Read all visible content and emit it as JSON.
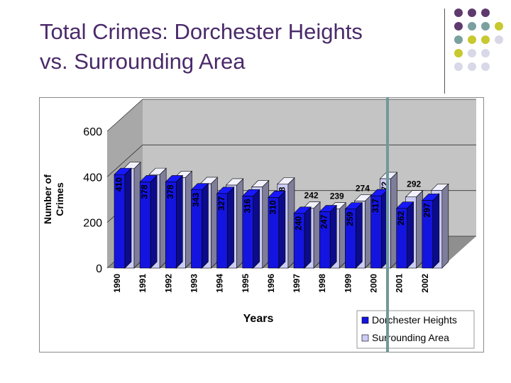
{
  "slide": {
    "title_line1": "Total Crimes: Dorchester Heights",
    "title_line2": "vs. Surrounding Area"
  },
  "theme": {
    "title_color": "#4a2a6a",
    "dot_colors": [
      "#5e3a6e",
      "#7aa0a0",
      "#c8c830",
      "#d8d8e8"
    ]
  },
  "chart_data": {
    "type": "bar",
    "style": "3d-clustered",
    "categories": [
      "1990",
      "1991",
      "1992",
      "1993",
      "1994",
      "1995",
      "1996",
      "1997",
      "1998",
      "1999",
      "2000",
      "2001",
      "2002"
    ],
    "series": [
      {
        "name": "Dorchester Heights",
        "color": "#1414e0",
        "values": [
          410,
          378,
          378,
          343,
          327,
          316,
          310,
          240,
          247,
          259,
          317,
          262,
          297
        ]
      },
      {
        "name": "Surrounding Area",
        "color": "#ccccf8",
        "values": [
          416,
          390,
          377,
          350,
          344,
          336,
          348,
          242,
          239,
          274,
          372,
          292,
          321
        ]
      }
    ],
    "xlabel": "Years",
    "ylabel": "Number of Crimes",
    "ylim": [
      0,
      600
    ],
    "yticks": [
      "0",
      "200",
      "400",
      "600"
    ],
    "legend": "bottom-right",
    "grid": true
  }
}
